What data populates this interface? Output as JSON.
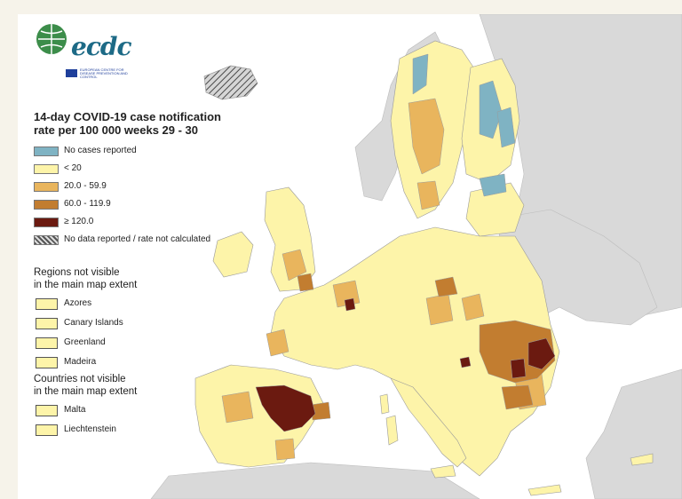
{
  "logo": {
    "text": "ecdc",
    "subtitle": "EUROPEAN CENTRE FOR DISEASE PREVENTION AND CONTROL"
  },
  "legend": {
    "title": "14-day COVID-19 case notification\nrate per 100 000 weeks 29 - 30",
    "items": [
      {
        "label": "No cases reported",
        "color": "#7fb3c3"
      },
      {
        "label": "< 20",
        "color": "#fdf4a9"
      },
      {
        "label": "20.0 - 59.9",
        "color": "#e9b55d"
      },
      {
        "label": "60.0 - 119.9",
        "color": "#c27d30"
      },
      {
        "label": "≥ 120.0",
        "color": "#6b1a10"
      },
      {
        "label": "No data reported / rate not calculated",
        "color": "hatched-grey"
      }
    ]
  },
  "regions_section": {
    "title": "Regions not visible\nin the main map extent",
    "items": [
      "Azores",
      "Canary Islands",
      "Greenland",
      "Madeira"
    ]
  },
  "countries_section": {
    "title": "Countries not visible\nin the main map extent",
    "items": [
      "Malta",
      "Liechtenstein"
    ]
  },
  "colors": {
    "sea": "#ffffff",
    "non_eu_land": "#d9d9d9",
    "border": "#9a9a9a"
  }
}
